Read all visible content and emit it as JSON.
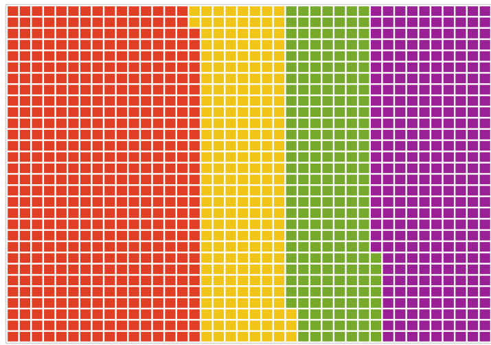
{
  "chart_data": {
    "type": "waffle",
    "values": [
      478,
      215,
      215,
      292
    ],
    "colors": [
      "#e03f26",
      "#f1c518",
      "#77a92c",
      "#9a2195"
    ]
  }
}
